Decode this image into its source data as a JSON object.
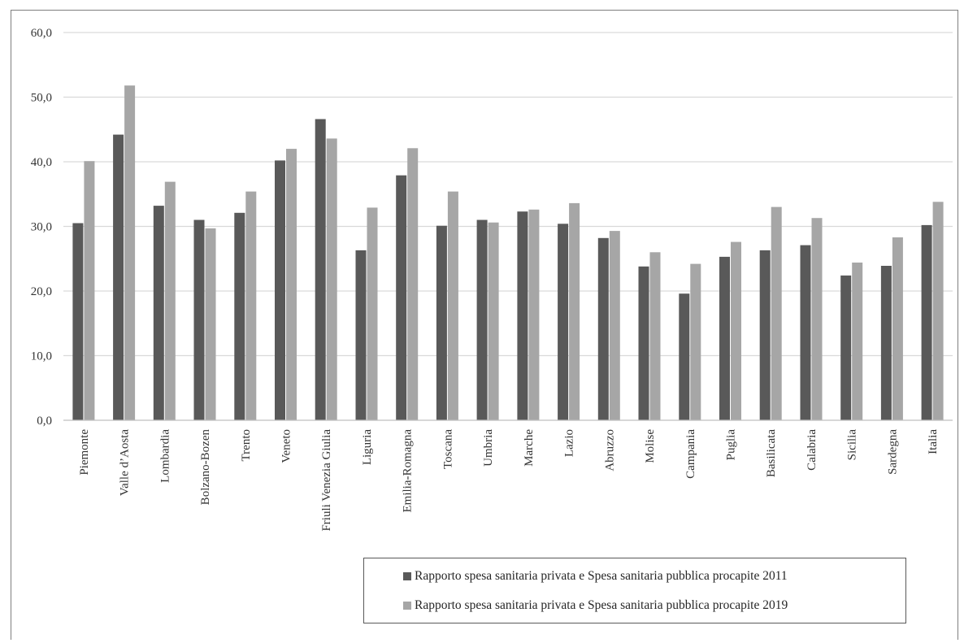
{
  "chart_data": {
    "type": "bar",
    "title": "",
    "xlabel": "",
    "ylabel": "",
    "ylim": [
      0,
      60
    ],
    "yticks": [
      "0,0",
      "10,0",
      "20,0",
      "30,0",
      "40,0",
      "50,0",
      "60,0"
    ],
    "grid": true,
    "legend_position": "bottom-right",
    "categories": [
      "Piemonte",
      "Valle d’Aosta",
      "Lombardia",
      "Bolzano-Bozen",
      "Trento",
      "Veneto",
      "Friuli Venezia Giulia",
      "Liguria",
      "Emilia-Romagna",
      "Toscana",
      "Umbria",
      "Marche",
      "Lazio",
      "Abruzzo",
      "Molise",
      "Campania",
      "Puglia",
      "Basilicata",
      "Calabria",
      "Sicilia",
      "Sardegna",
      "Italia"
    ],
    "series": [
      {
        "name": "Rapporto spesa sanitaria privata e Spesa sanitaria pubblica procapite 2011",
        "color": "#595959",
        "values": [
          30.5,
          44.2,
          33.2,
          31.0,
          32.1,
          40.2,
          46.6,
          26.3,
          37.9,
          30.1,
          31.0,
          32.3,
          30.4,
          28.2,
          23.8,
          19.6,
          25.3,
          26.3,
          27.1,
          22.4,
          23.9,
          30.2
        ]
      },
      {
        "name": "Rapporto spesa sanitaria privata e Spesa sanitaria pubblica procapite 2019",
        "color": "#a6a6a6",
        "values": [
          40.1,
          51.8,
          36.9,
          29.7,
          35.4,
          42.0,
          43.6,
          32.9,
          42.1,
          35.4,
          30.6,
          32.6,
          33.6,
          29.3,
          26.0,
          24.2,
          27.6,
          33.0,
          31.3,
          24.4,
          28.3,
          33.8
        ]
      }
    ]
  }
}
